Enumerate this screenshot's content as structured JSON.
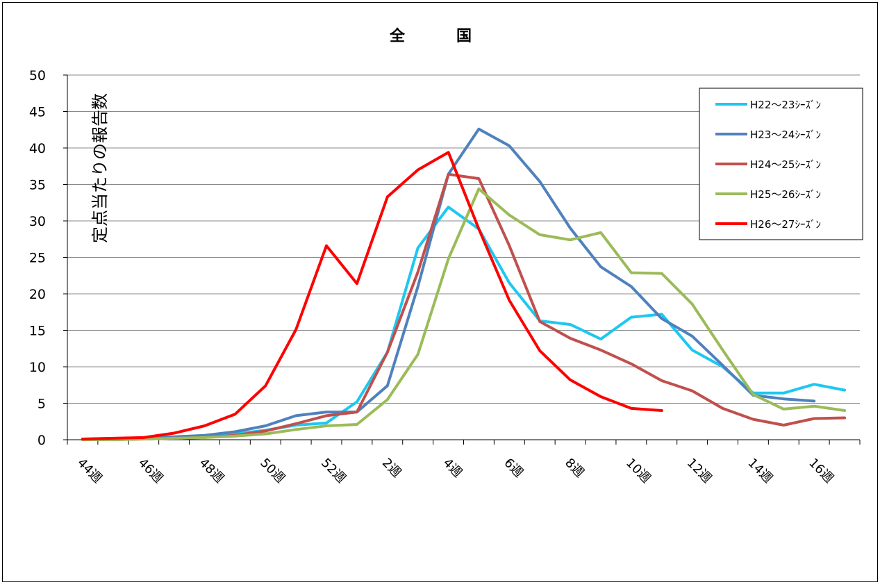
{
  "chart_data": {
    "type": "line",
    "title": "全　国",
    "ylabel": "定点当たりの報告数",
    "xlabel": "",
    "ylim": [
      0,
      50
    ],
    "yticks": [
      0,
      5,
      10,
      15,
      20,
      25,
      30,
      35,
      40,
      45,
      50
    ],
    "categories": [
      "44週",
      "45週",
      "46週",
      "47週",
      "48週",
      "49週",
      "50週",
      "51週",
      "52週",
      "1週",
      "2週",
      "3週",
      "4週",
      "5週",
      "6週",
      "7週",
      "8週",
      "9週",
      "10週",
      "11週",
      "12週",
      "13週",
      "14週",
      "15週",
      "16週",
      "17週"
    ],
    "x_tick_labels": [
      "44週",
      "46週",
      "48週",
      "50週",
      "52週",
      "2週",
      "4週",
      "6週",
      "8週",
      "10週",
      "12週",
      "14週",
      "16週"
    ],
    "legend_position": "top-right",
    "grid": "horizontal",
    "series": [
      {
        "name": "H22～23ｼｰｽﾞﾝ",
        "color": "#1DC8F0",
        "values": [
          0.1,
          0.1,
          0.1,
          0.3,
          0.5,
          0.8,
          1.3,
          2.0,
          2.3,
          5.2,
          12.0,
          26.3,
          31.9,
          28.9,
          21.5,
          16.3,
          15.8,
          13.8,
          16.8,
          17.2,
          12.3,
          10.0,
          6.4,
          6.4,
          7.6,
          6.8
        ]
      },
      {
        "name": "H23～24ｼｰｽﾞﾝ",
        "color": "#4F81BD",
        "values": [
          0.1,
          0.1,
          0.2,
          0.4,
          0.6,
          1.1,
          1.9,
          3.3,
          3.8,
          3.8,
          7.4,
          21.0,
          36.4,
          42.6,
          40.3,
          35.4,
          29.0,
          23.7,
          21.0,
          16.6,
          14.2,
          10.2,
          6.1,
          5.6,
          5.3,
          null
        ]
      },
      {
        "name": "H24～25ｼｰｽﾞﾝ",
        "color": "#C0504D",
        "values": [
          0.0,
          0.0,
          0.1,
          0.2,
          0.3,
          0.6,
          1.2,
          2.2,
          3.3,
          3.8,
          12.0,
          23.0,
          36.4,
          35.8,
          26.6,
          16.2,
          13.9,
          12.3,
          10.4,
          8.1,
          6.7,
          4.3,
          2.8,
          2.0,
          2.9,
          3.0
        ]
      },
      {
        "name": "H25～26ｼｰｽﾞﾝ",
        "color": "#9BBB59",
        "values": [
          0.0,
          0.0,
          0.1,
          0.2,
          0.3,
          0.5,
          0.8,
          1.4,
          1.9,
          2.1,
          5.5,
          11.7,
          24.8,
          34.4,
          30.8,
          28.1,
          27.4,
          28.4,
          22.9,
          22.8,
          18.6,
          12.3,
          6.2,
          4.2,
          4.6,
          4.0
        ]
      },
      {
        "name": "H26～27ｼｰｽﾞﾝ",
        "color": "#FF0000",
        "values": [
          0.1,
          0.2,
          0.3,
          0.9,
          1.9,
          3.5,
          7.4,
          15.1,
          26.6,
          21.4,
          33.3,
          37.0,
          39.4,
          28.9,
          19.1,
          12.2,
          8.2,
          5.9,
          4.3,
          4.0,
          null,
          null,
          null,
          null,
          null,
          null
        ]
      }
    ]
  }
}
